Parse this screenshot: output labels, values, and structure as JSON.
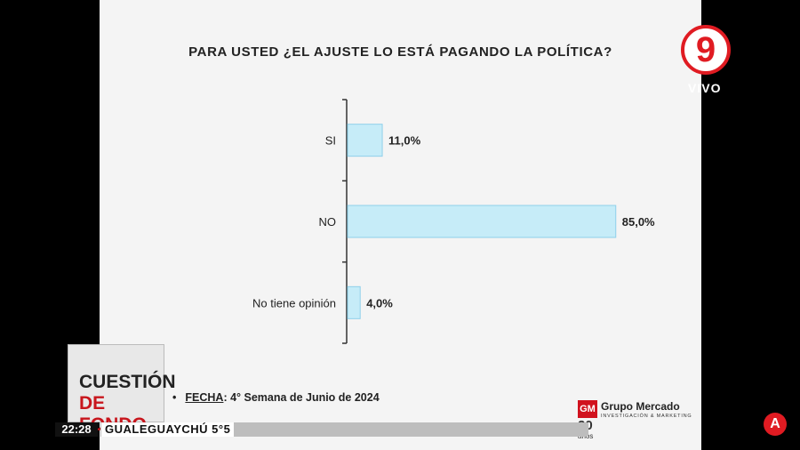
{
  "chart_data": {
    "type": "bar",
    "orientation": "horizontal",
    "title": "PARA USTED ¿EL AJUSTE LO ESTÁ PAGANDO LA POLÍTICA?",
    "categories": [
      "SI",
      "NO",
      "No tiene opinión"
    ],
    "values": [
      11.0,
      85.0,
      4.0
    ],
    "value_labels": [
      "11,0%",
      "85,0%",
      "4,0%"
    ],
    "xlim": [
      0,
      100
    ],
    "bar_color": "#c6ecf8",
    "bar_border": "#8fd0ea",
    "grid": false
  },
  "footer": {
    "bullet": "•",
    "fecha_label": "FECHA",
    "fecha_value": ": 4° Semana de Junio de  2024"
  },
  "pollster": {
    "mark": "GM",
    "name": "Grupo Mercado",
    "subtitle": "INVESTIGACIÓN & MARKETING",
    "anniversary": "20",
    "anniversary_unit": "años"
  },
  "channel": {
    "number": "9",
    "live": "VIVO",
    "color": "#e01b22"
  },
  "program": {
    "line1": "CUESTIÓN",
    "line2": "DE FONDO"
  },
  "ticker": {
    "time": "22:28",
    "text": "GUALEGUAYCHÚ  5°5"
  },
  "corner_logo": "A"
}
